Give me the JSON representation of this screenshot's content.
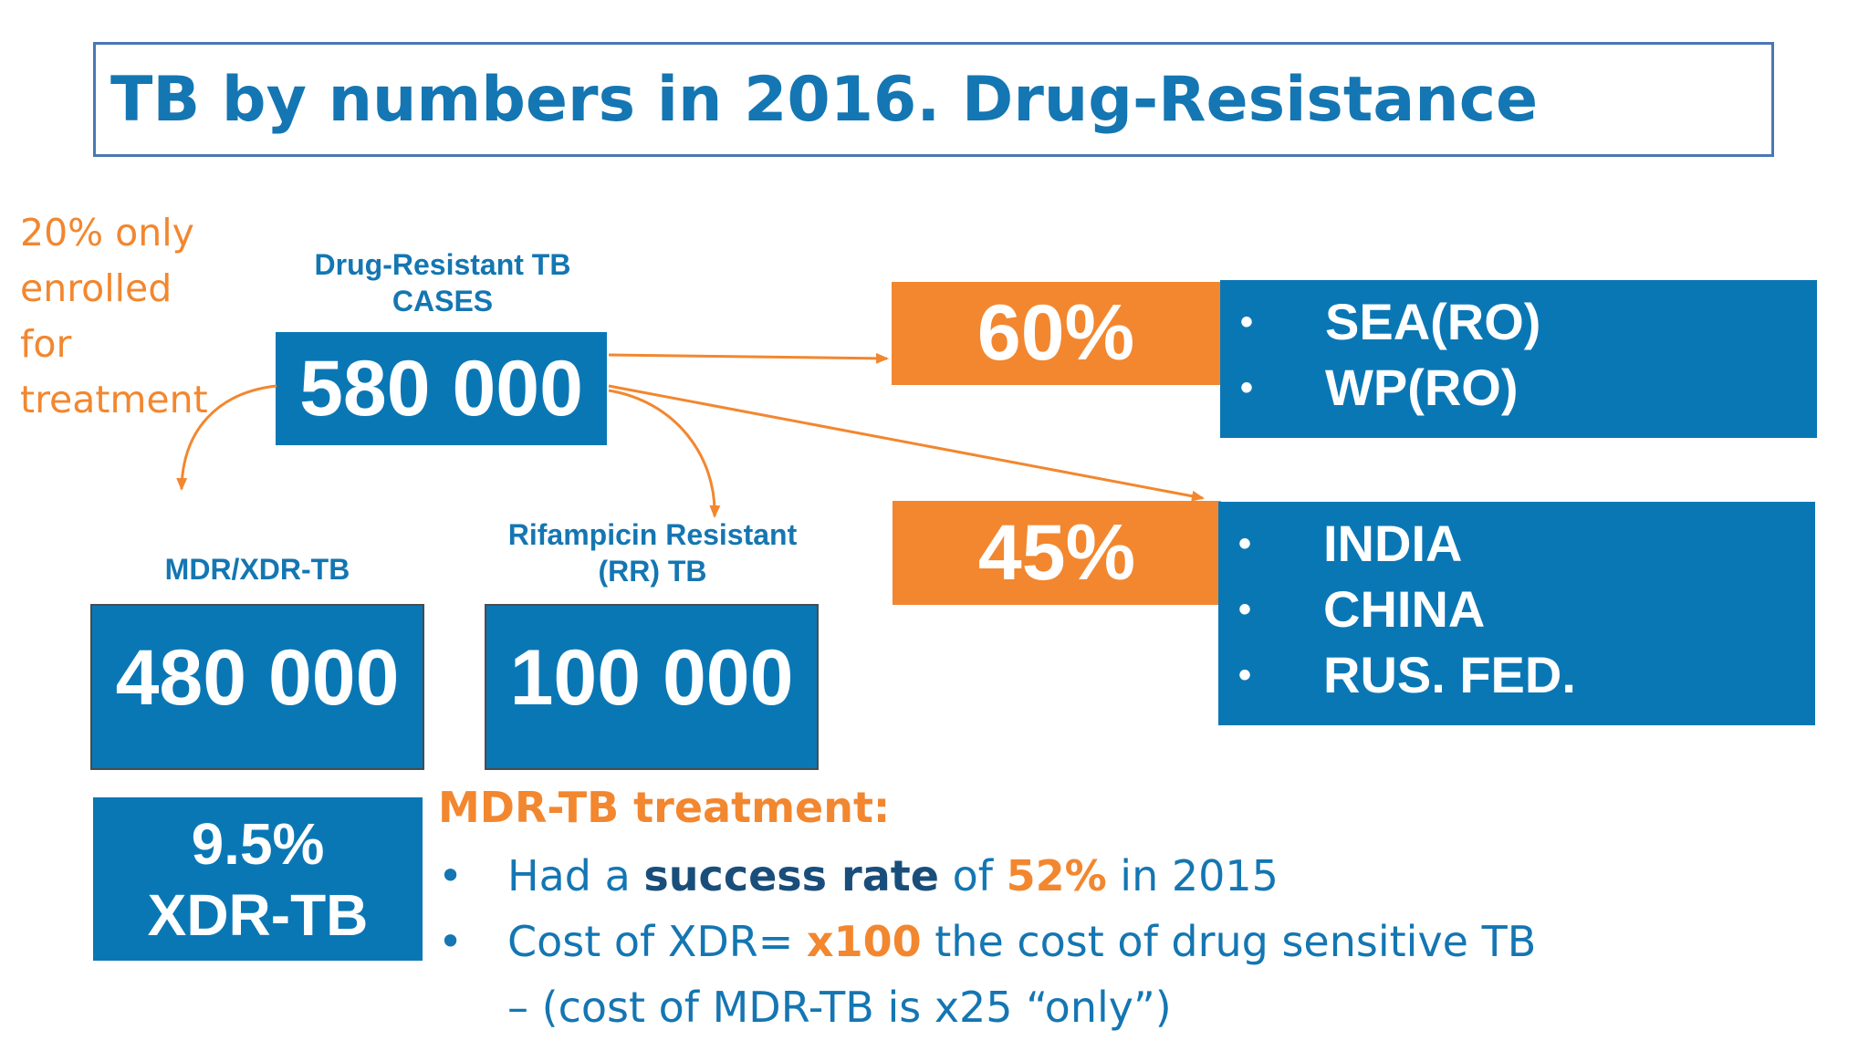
{
  "title": "TB by numbers in 2016. Drug-Resistance",
  "enrolled_note": [
    "20% only",
    "enrolled",
    "for",
    "treatment"
  ],
  "drug_resistant": {
    "label_line1": "Drug-Resistant TB",
    "label_line2": "CASES",
    "value": "580 000"
  },
  "mdr_xdr": {
    "label": "MDR/XDR-TB",
    "value": "480 000"
  },
  "rr_tb": {
    "label_line1": "Rifampicin Resistant",
    "label_line2": "(RR) TB",
    "value": "100 000"
  },
  "xdr": {
    "percent": "9.5%",
    "label": "XDR-TB"
  },
  "region_groups": [
    {
      "percent": "60%",
      "items": [
        "SEA(RO)",
        "WP(RO)"
      ]
    },
    {
      "percent": "45%",
      "items": [
        "INDIA",
        "CHINA",
        "RUS. FED."
      ]
    }
  ],
  "treatment": {
    "heading": "MDR-TB treatment:",
    "b1": {
      "pre": "Had a ",
      "bold": "success rate",
      "mid": " of ",
      "highlight": "52%",
      "post": " in 2015"
    },
    "b2": {
      "pre": "Cost of XDR= ",
      "highlight": "x100",
      "post": " the cost of drug sensitive TB – (cost of MDR-TB is x25 “only”)"
    }
  },
  "colors": {
    "blue": "#0a77b5",
    "title_blue": "#1476b2",
    "orange": "#f2872f"
  }
}
